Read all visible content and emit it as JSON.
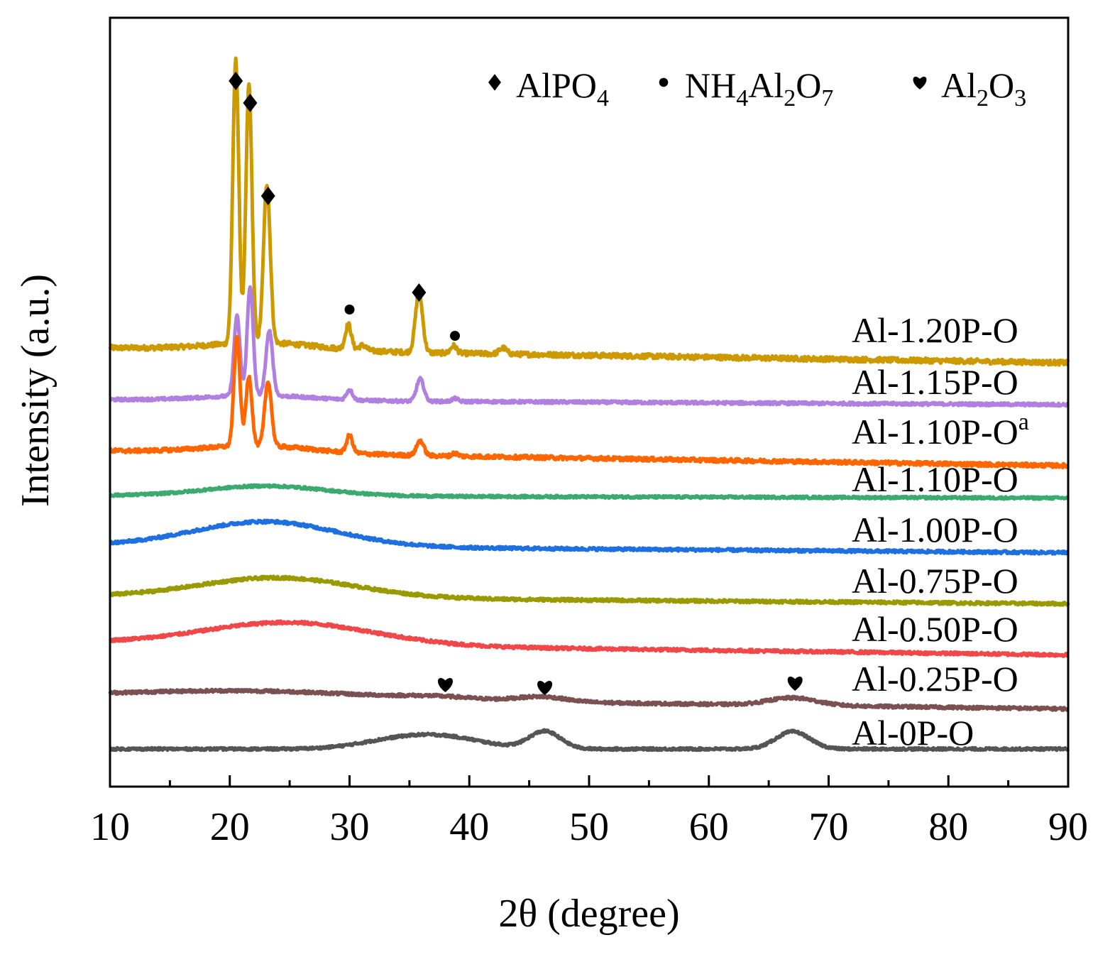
{
  "chart_data": {
    "type": "line",
    "title": "",
    "xlabel": "2θ (degree)",
    "ylabel": "Intensity (a.u.)",
    "xlim": [
      10,
      90
    ],
    "x_ticks": [
      10,
      20,
      30,
      40,
      50,
      60,
      70,
      80,
      90
    ],
    "grid": false,
    "legend": {
      "placement": "top-right",
      "entries": [
        {
          "marker": "diamond",
          "name_main": "AlPO",
          "sub": "4",
          "label": "AlPO4"
        },
        {
          "marker": "dot",
          "name_main": "NH",
          "sub1": "4",
          "mid": "Al",
          "sub2": "2",
          "mid2": "O",
          "sub3": "7",
          "label": "NH4Al2O7"
        },
        {
          "marker": "heart",
          "name_main": "Al",
          "sub1": "2",
          "mid": "O",
          "sub2": "3",
          "label": "Al2O3"
        }
      ]
    },
    "series": [
      {
        "name": "Al-1.20P-O",
        "color": "#CC9900",
        "baseline": 0.0,
        "drop": 0.3,
        "noise": 0.1,
        "label": "Al-1.20P-O",
        "peaks": [
          [
            20.5,
            5.7,
            0.25
          ],
          [
            21.6,
            5.2,
            0.25
          ],
          [
            23.1,
            3.2,
            0.28
          ],
          [
            29.9,
            0.5,
            0.25
          ],
          [
            35.8,
            1.2,
            0.3
          ],
          [
            38.7,
            0.15,
            0.25
          ],
          [
            31.1,
            0.1,
            0.3
          ],
          [
            42.8,
            0.12,
            0.3
          ]
        ],
        "humps": [
          [
            23.0,
            0.15,
            4.5
          ]
        ]
      },
      {
        "name": "Al-1.15P-O",
        "color": "#B07FE0",
        "baseline": 0.0,
        "drop": 0.1,
        "noise": 0.06,
        "label": "Al-1.15P-O",
        "peaks": [
          [
            20.6,
            1.6,
            0.25
          ],
          [
            21.7,
            2.2,
            0.25
          ],
          [
            23.3,
            1.3,
            0.28
          ],
          [
            30.0,
            0.2,
            0.25
          ],
          [
            35.9,
            0.45,
            0.3
          ],
          [
            38.8,
            0.06,
            0.25
          ]
        ],
        "humps": [
          [
            22.5,
            0.1,
            4.5
          ]
        ]
      },
      {
        "name": "Al-1.10P-O^a",
        "color": "#FF6600",
        "baseline": 0.0,
        "drop": 0.3,
        "noise": 0.08,
        "label_main": "Al-1.10P-O",
        "label_sup": "a",
        "peaks": [
          [
            20.6,
            2.2,
            0.25
          ],
          [
            21.6,
            1.4,
            0.25
          ],
          [
            23.2,
            1.3,
            0.28
          ],
          [
            30.0,
            0.35,
            0.25
          ],
          [
            35.9,
            0.3,
            0.3
          ],
          [
            38.8,
            0.06,
            0.25
          ]
        ],
        "humps": [
          [
            22.5,
            0.15,
            4.5
          ]
        ]
      },
      {
        "name": "Al-1.10P-O",
        "color": "#3CAA70",
        "baseline": 0.0,
        "drop": 0.05,
        "noise": 0.05,
        "label": "Al-1.10P-O",
        "peaks": [],
        "humps": [
          [
            23.0,
            0.2,
            5.0
          ]
        ]
      },
      {
        "name": "Al-1.00P-O",
        "color": "#1E6FE0",
        "baseline": 0.0,
        "drop": 0.15,
        "noise": 0.06,
        "label": "Al-1.00P-O",
        "peaks": [],
        "humps": [
          [
            23.0,
            0.5,
            6.0
          ]
        ]
      },
      {
        "name": "Al-0.75P-O",
        "color": "#999900",
        "baseline": 0.0,
        "drop": 0.15,
        "noise": 0.06,
        "label": "Al-0.75P-O",
        "peaks": [],
        "humps": [
          [
            24.0,
            0.4,
            6.5
          ]
        ]
      },
      {
        "name": "Al-0.50P-O",
        "color": "#F04848",
        "baseline": 0.0,
        "drop": 0.25,
        "noise": 0.06,
        "label": "Al-0.50P-O",
        "peaks": [],
        "humps": [
          [
            25.0,
            0.45,
            7.0
          ]
        ]
      },
      {
        "name": "Al-0.25P-O",
        "color": "#7A5050",
        "baseline": 0.0,
        "drop": 0.25,
        "noise": 0.06,
        "label": "Al-0.25P-O",
        "peaks": [],
        "humps": [
          [
            22.0,
            0.15,
            10.0
          ],
          [
            46.0,
            0.1,
            2.0
          ],
          [
            67.0,
            0.15,
            2.0
          ],
          [
            37.5,
            0.05,
            3.0
          ]
        ]
      },
      {
        "name": "Al-0P-O",
        "color": "#555555",
        "baseline": 0.0,
        "drop": 0.0,
        "noise": 0.05,
        "label": "Al-0P-O",
        "peaks": [],
        "humps": [
          [
            37.5,
            0.25,
            3.5
          ],
          [
            46.3,
            0.35,
            1.3
          ],
          [
            67.0,
            0.35,
            1.4
          ],
          [
            33.0,
            0.1,
            3.0
          ]
        ]
      }
    ],
    "annotations": [
      {
        "marker": "diamond",
        "x": 20.5,
        "series": "Al-1.20P-O",
        "phase": "AlPO4"
      },
      {
        "marker": "diamond",
        "x": 21.7,
        "series": "Al-1.20P-O",
        "phase": "AlPO4"
      },
      {
        "marker": "diamond",
        "x": 23.2,
        "series": "Al-1.20P-O",
        "phase": "AlPO4"
      },
      {
        "marker": "dot",
        "x": 30.0,
        "series": "Al-1.20P-O",
        "phase": "NH4Al2O7"
      },
      {
        "marker": "diamond",
        "x": 35.8,
        "series": "Al-1.20P-O",
        "phase": "AlPO4"
      },
      {
        "marker": "dot",
        "x": 38.8,
        "series": "Al-1.20P-O",
        "phase": "NH4Al2O7"
      },
      {
        "marker": "heart",
        "x": 38.0,
        "series": "Al-0.25P-O",
        "phase": "Al2O3"
      },
      {
        "marker": "heart",
        "x": 46.3,
        "series": "Al-0.25P-O",
        "phase": "Al2O3"
      },
      {
        "marker": "heart",
        "x": 67.2,
        "series": "Al-0.25P-O",
        "phase": "Al2O3"
      }
    ]
  }
}
